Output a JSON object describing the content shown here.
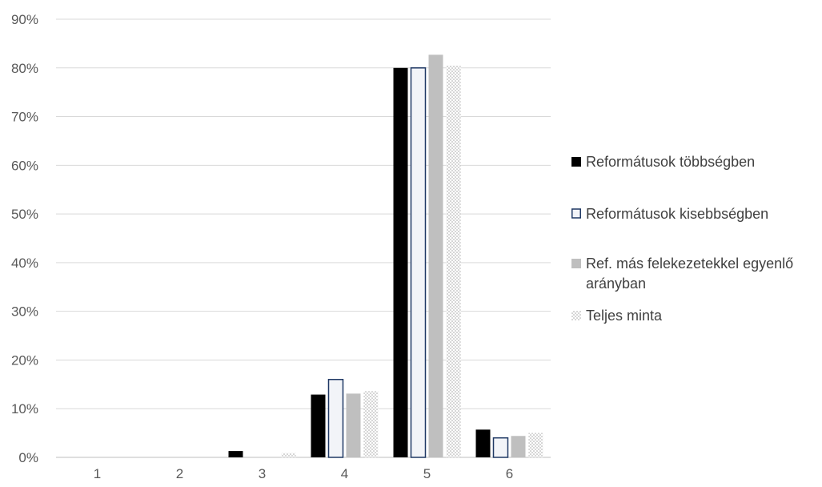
{
  "chart_data": {
    "type": "bar",
    "categories": [
      "1",
      "2",
      "3",
      "4",
      "5",
      "6"
    ],
    "ylim": [
      0,
      90
    ],
    "yticks": [
      0,
      10,
      20,
      30,
      40,
      50,
      60,
      70,
      80,
      90
    ],
    "ytick_suffix": "%",
    "grid": true,
    "legend_position": "right",
    "series": [
      {
        "name": "Reformátusok többségben",
        "values": [
          0,
          0,
          1.3,
          12.9,
          80.0,
          5.7
        ],
        "fill": "#000000",
        "stroke": "#000000",
        "pattern": "solid"
      },
      {
        "name": "Reformátusok kisebbségben",
        "values": [
          0,
          0,
          0,
          16.0,
          80.0,
          4.0
        ],
        "fill": "#f2f4f8",
        "stroke": "#1f3864",
        "pattern": "outline"
      },
      {
        "name": "Ref. más felekezetekkel egyenlő arányban",
        "name_lines": [
          "Ref. más felekezetekkel egyenlő",
          "arányban"
        ],
        "values": [
          0,
          0,
          0,
          13.1,
          82.7,
          4.4
        ],
        "fill": "#bfbfbf",
        "stroke": "#bfbfbf",
        "pattern": "solid"
      },
      {
        "name": "Teljes minta",
        "values": [
          0,
          0,
          0.9,
          13.6,
          80.5,
          5.0
        ],
        "fill": "#ffffff",
        "stroke": "#d0d0d0",
        "pattern": "dots"
      }
    ]
  }
}
